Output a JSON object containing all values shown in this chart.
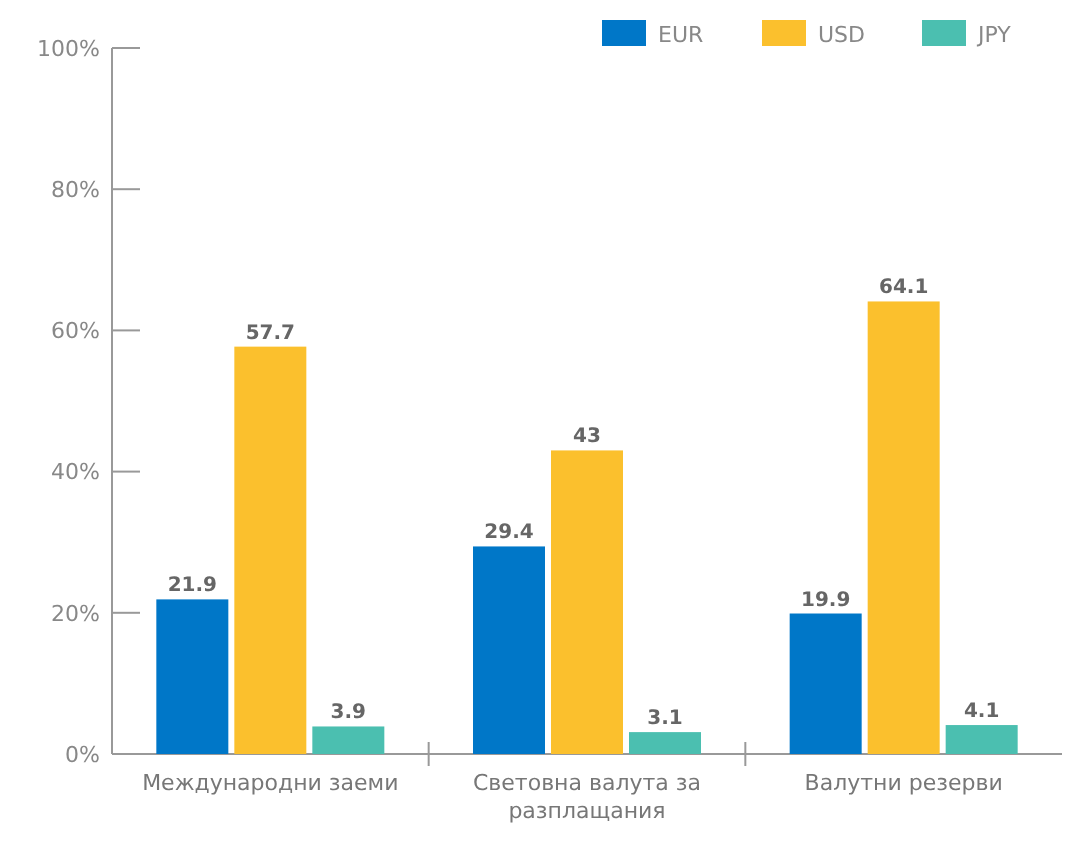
{
  "chart_data": {
    "type": "bar",
    "categories": [
      "Международни заеми",
      "Световна валута за разплащания",
      "Валутни резерви"
    ],
    "series": [
      {
        "name": "EUR",
        "color": "#0077c8",
        "values": [
          21.9,
          29.4,
          19.9
        ]
      },
      {
        "name": "USD",
        "color": "#fbc02d",
        "values": [
          57.7,
          43,
          64.1
        ]
      },
      {
        "name": "JPY",
        "color": "#4bbfb0",
        "values": [
          3.9,
          3.1,
          4.1
        ]
      }
    ],
    "ylim": [
      0,
      100
    ],
    "yticks": [
      {
        "value": 0,
        "label": "0%"
      },
      {
        "value": 20,
        "label": "20%"
      },
      {
        "value": 40,
        "label": "40%"
      },
      {
        "value": 60,
        "label": "60%"
      },
      {
        "value": 80,
        "label": "80%"
      },
      {
        "value": 100,
        "label": "100%"
      }
    ],
    "grid": false,
    "legend": "top right",
    "data_labels": true
  }
}
